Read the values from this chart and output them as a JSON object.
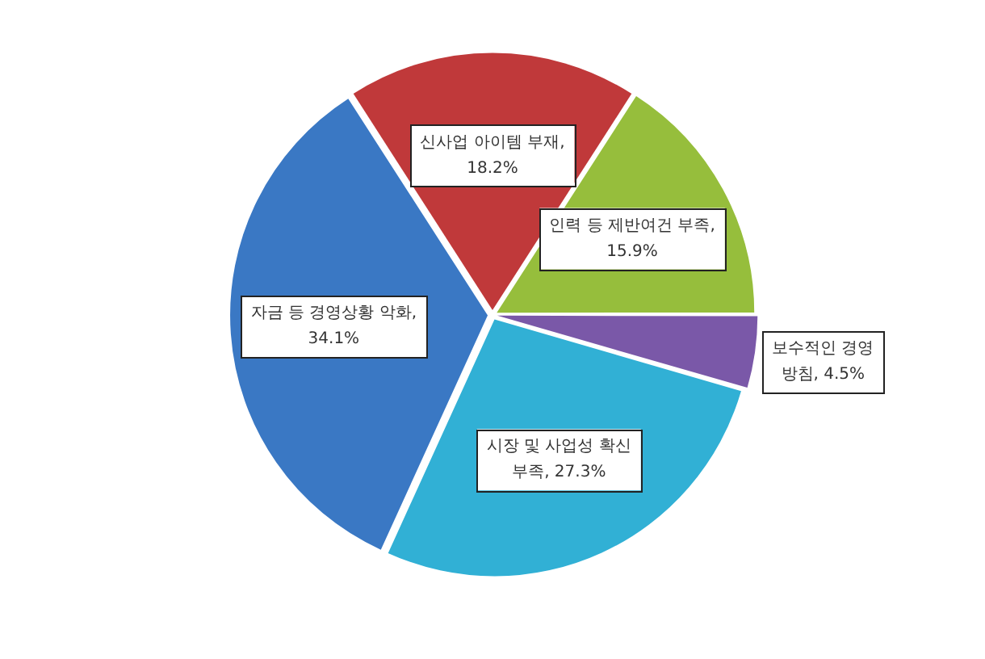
{
  "chart_data": {
    "type": "pie",
    "categories": [
      null,
      null,
      null,
      null,
      null
    ],
    "values": [
      18.2,
      15.9,
      4.5,
      27.3,
      34.1
    ],
    "colors": [
      "#c0393a",
      "#96be3c",
      "#7a58a8",
      "#31b0d5",
      "#3a78c4"
    ],
    "value_labels": [
      "신사업 아이템 부재, 18.2%",
      "인력 등 제반여건 부족, 15.9%",
      "보수적인 경영 방침, 4.5%",
      "시장 및 사업성 확신 부족, 27.3%",
      "자금 등 경영상황 악화, 34.1%"
    ]
  }
}
